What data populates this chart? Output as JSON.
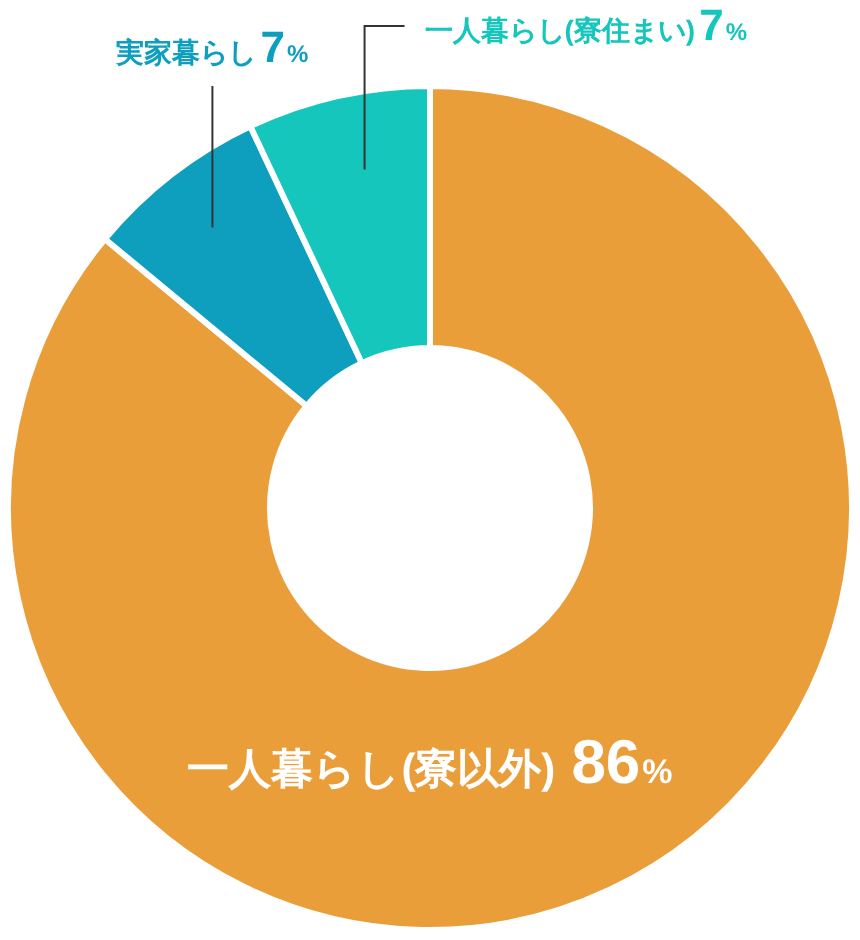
{
  "chart_data": {
    "type": "donut",
    "categories": [
      "一人暮らし(寮以外)",
      "実家暮らし",
      "一人暮らし(寮住まい)"
    ],
    "values": [
      86,
      7,
      7
    ],
    "colors": [
      "#ea9e3a",
      "#0e9fbf",
      "#15c6bd"
    ],
    "value_labels": [
      "86%",
      "7%",
      "7%"
    ]
  }
}
